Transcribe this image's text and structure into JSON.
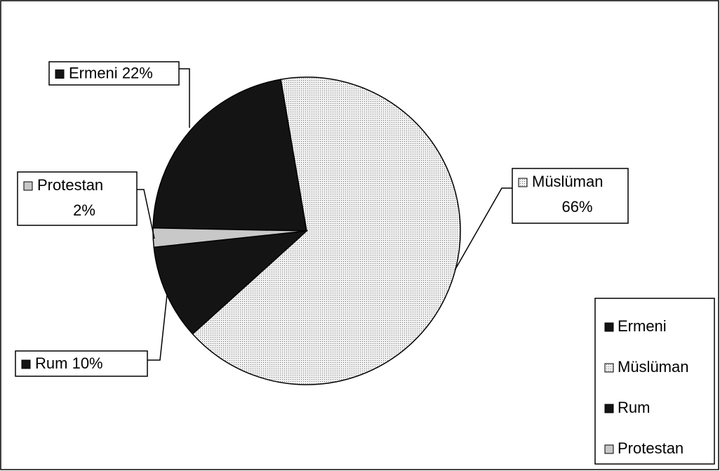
{
  "chart_data": {
    "type": "pie",
    "categories": [
      "Ermeni",
      "Müslüman",
      "Rum",
      "Protestan"
    ],
    "values": [
      22,
      66,
      10,
      2
    ],
    "value_labels": [
      "22%",
      "66%",
      "10%",
      "2%"
    ],
    "colors": [
      "#141414",
      "#dcdcdc",
      "#141414",
      "#c8c8c8"
    ],
    "legend": "right"
  }
}
